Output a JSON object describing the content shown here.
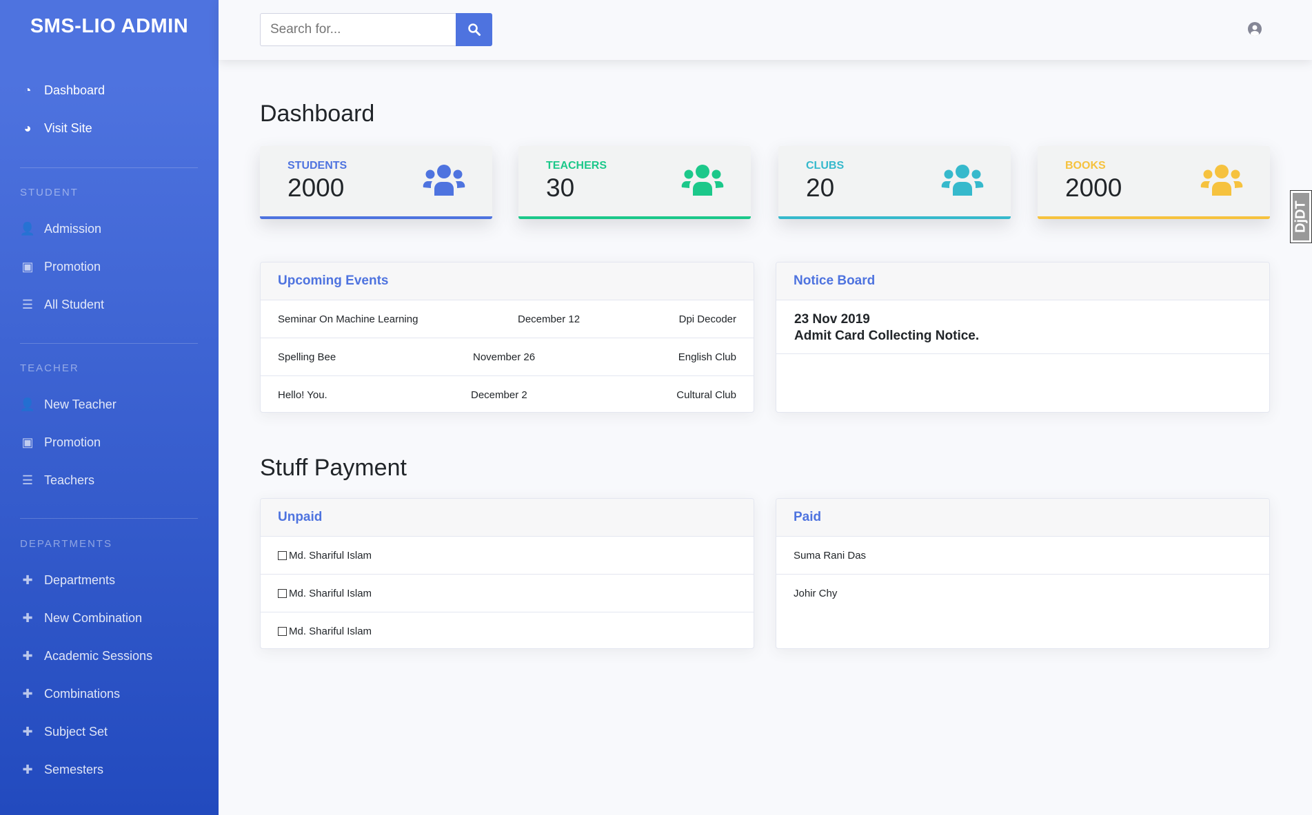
{
  "sidebar": {
    "brand": "SMS-LIO ADMIN",
    "main": [
      {
        "label": "Dashboard",
        "icon": "tachometer-icon"
      },
      {
        "label": "Visit Site",
        "icon": "globe-icon"
      }
    ],
    "sections": [
      {
        "title": "STUDENT",
        "items": [
          {
            "label": "Admission",
            "icon": "user-plus-icon"
          },
          {
            "label": "Promotion",
            "icon": "id-badge-icon"
          },
          {
            "label": "All Student",
            "icon": "list-icon"
          }
        ]
      },
      {
        "title": "TEACHER",
        "items": [
          {
            "label": "New Teacher",
            "icon": "user-icon"
          },
          {
            "label": "Promotion",
            "icon": "id-badge-icon"
          },
          {
            "label": "Teachers",
            "icon": "list-icon"
          }
        ]
      },
      {
        "title": "DEPARTMENTS",
        "items": [
          {
            "label": "Departments",
            "icon": "plus-icon"
          },
          {
            "label": "New Combination",
            "icon": "plus-icon"
          },
          {
            "label": "Academic Sessions",
            "icon": "plus-icon"
          },
          {
            "label": "Combinations",
            "icon": "plus-icon"
          },
          {
            "label": "Subject Set",
            "icon": "plus-icon"
          },
          {
            "label": "Semesters",
            "icon": "plus-icon"
          }
        ]
      }
    ]
  },
  "topbar": {
    "search_placeholder": "Search for...",
    "search_value": ""
  },
  "page_title": "Dashboard",
  "stats": [
    {
      "label": "STUDENTS",
      "value": "2000",
      "color": "#4e73df"
    },
    {
      "label": "TEACHERS",
      "value": "30",
      "color": "#1cc88a"
    },
    {
      "label": "CLUBS",
      "value": "20",
      "color": "#36b9cc"
    },
    {
      "label": "BOOKS",
      "value": "2000",
      "color": "#f6c23e"
    }
  ],
  "events": {
    "title": "Upcoming Events",
    "rows": [
      {
        "name": "Seminar On Machine Learning",
        "date": "December 12",
        "org": "Dpi Decoder"
      },
      {
        "name": "Spelling Bee",
        "date": "November 26",
        "org": "English Club"
      },
      {
        "name": "Hello! You.",
        "date": "December 2",
        "org": "Cultural Club"
      }
    ]
  },
  "notice": {
    "title": "Notice Board",
    "date": "23 Nov 2019",
    "text": "Admit Card Collecting Notice."
  },
  "payment_title": "Stuff Payment",
  "unpaid": {
    "title": "Unpaid",
    "rows": [
      "Md. Shariful Islam",
      "Md. Shariful Islam",
      "Md. Shariful Islam"
    ]
  },
  "paid": {
    "title": "Paid",
    "rows": [
      "Suma Rani Das",
      "Johir Chy"
    ]
  },
  "debug_toolbar": "DjDT"
}
